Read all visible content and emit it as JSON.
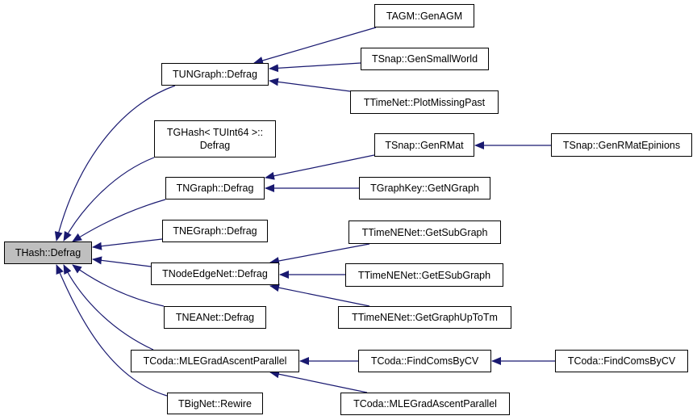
{
  "edge_color": "#191970",
  "root_fill": "#bfbfbf",
  "nodes": [
    {
      "id": "thash",
      "label": "THash::Defrag",
      "root": true
    },
    {
      "id": "tungraph",
      "label": "TUNGraph::Defrag"
    },
    {
      "id": "tghash",
      "label": "TGHash< TUInt64 >::\nDefrag"
    },
    {
      "id": "tngraph",
      "label": "TNGraph::Defrag"
    },
    {
      "id": "tnegraph",
      "label": "TNEGraph::Defrag"
    },
    {
      "id": "tnodeedgenet",
      "label": "TNodeEdgeNet::Defrag"
    },
    {
      "id": "tneanet",
      "label": "TNEANet::Defrag"
    },
    {
      "id": "tcoda_mle",
      "label": "TCoda::MLEGradAscentParallel"
    },
    {
      "id": "tbignet",
      "label": "TBigNet::Rewire"
    },
    {
      "id": "tagm",
      "label": "TAGM::GenAGM"
    },
    {
      "id": "gensmallworld",
      "label": "TSnap::GenSmallWorld"
    },
    {
      "id": "plotmissingpast",
      "label": "TTimeNet::PlotMissingPast"
    },
    {
      "id": "genrmat",
      "label": "TSnap::GenRMat"
    },
    {
      "id": "getngraph",
      "label": "TGraphKey::GetNGraph"
    },
    {
      "id": "getsubgraph",
      "label": "TTimeNENet::GetSubGraph"
    },
    {
      "id": "getesubgraph",
      "label": "TTimeNENet::GetESubGraph"
    },
    {
      "id": "getgraphuptotm",
      "label": "TTimeNENet::GetGraphUpToTm"
    },
    {
      "id": "findcomsbycv",
      "label": "TCoda::FindComsByCV"
    },
    {
      "id": "tcoda_mle2",
      "label": "TCoda::MLEGradAscentParallel"
    },
    {
      "id": "genrmatepinions",
      "label": "TSnap::GenRMatEpinions"
    },
    {
      "id": "findcomsbycv2",
      "label": "TCoda::FindComsByCV"
    }
  ],
  "edges": [
    {
      "from": "tungraph",
      "to": "thash"
    },
    {
      "from": "tghash",
      "to": "thash"
    },
    {
      "from": "tngraph",
      "to": "thash"
    },
    {
      "from": "tnegraph",
      "to": "thash"
    },
    {
      "from": "tnodeedgenet",
      "to": "thash"
    },
    {
      "from": "tneanet",
      "to": "thash"
    },
    {
      "from": "tcoda_mle",
      "to": "thash"
    },
    {
      "from": "tbignet",
      "to": "thash"
    },
    {
      "from": "tagm",
      "to": "tungraph"
    },
    {
      "from": "gensmallworld",
      "to": "tungraph"
    },
    {
      "from": "plotmissingpast",
      "to": "tungraph"
    },
    {
      "from": "genrmat",
      "to": "tngraph"
    },
    {
      "from": "getngraph",
      "to": "tngraph"
    },
    {
      "from": "getsubgraph",
      "to": "tnodeedgenet"
    },
    {
      "from": "getesubgraph",
      "to": "tnodeedgenet"
    },
    {
      "from": "getgraphuptotm",
      "to": "tnodeedgenet"
    },
    {
      "from": "findcomsbycv",
      "to": "tcoda_mle"
    },
    {
      "from": "tcoda_mle2",
      "to": "tcoda_mle"
    },
    {
      "from": "genrmatepinions",
      "to": "genrmat"
    },
    {
      "from": "findcomsbycv2",
      "to": "findcomsbycv"
    }
  ]
}
